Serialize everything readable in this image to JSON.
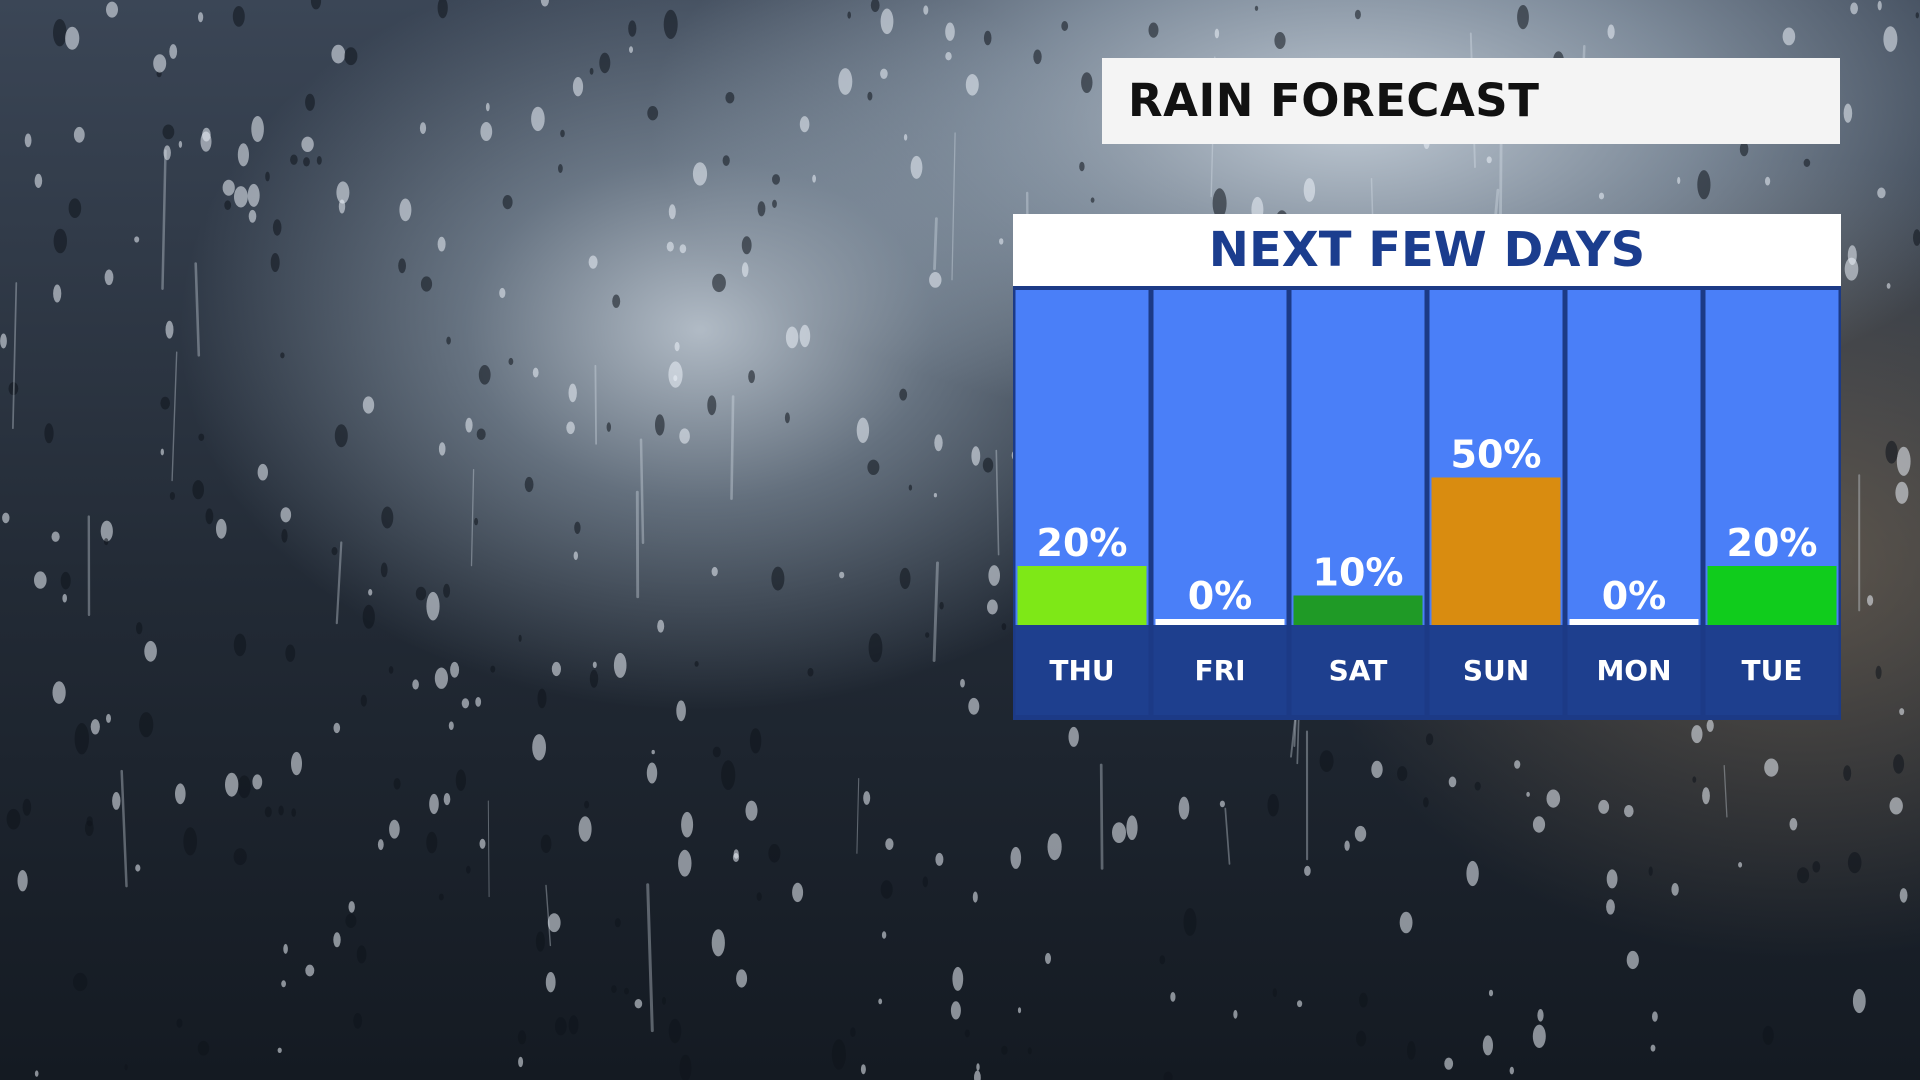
{
  "header": {
    "title": "RAIN FORECAST"
  },
  "colors": {
    "panel_blue": "#4a7ff8",
    "day_strip": "#1e3f8e",
    "frame": "#1c3a86",
    "title_bg": "#f4f4f4"
  },
  "chart_data": {
    "type": "bar",
    "title": "NEXT FEW DAYS",
    "categories": [
      "THU",
      "FRI",
      "SAT",
      "SUN",
      "MON",
      "TUE"
    ],
    "values": [
      20,
      0,
      10,
      50,
      0,
      20
    ],
    "value_labels": [
      "20%",
      "0%",
      "10%",
      "50%",
      "0%",
      "20%"
    ],
    "bar_colors": [
      "#7ee817",
      "#ffffff",
      "#1f9a26",
      "#d98c10",
      "#ffffff",
      "#10cc1c"
    ],
    "ylim": [
      0,
      100
    ],
    "grid": false,
    "legend": "none"
  }
}
